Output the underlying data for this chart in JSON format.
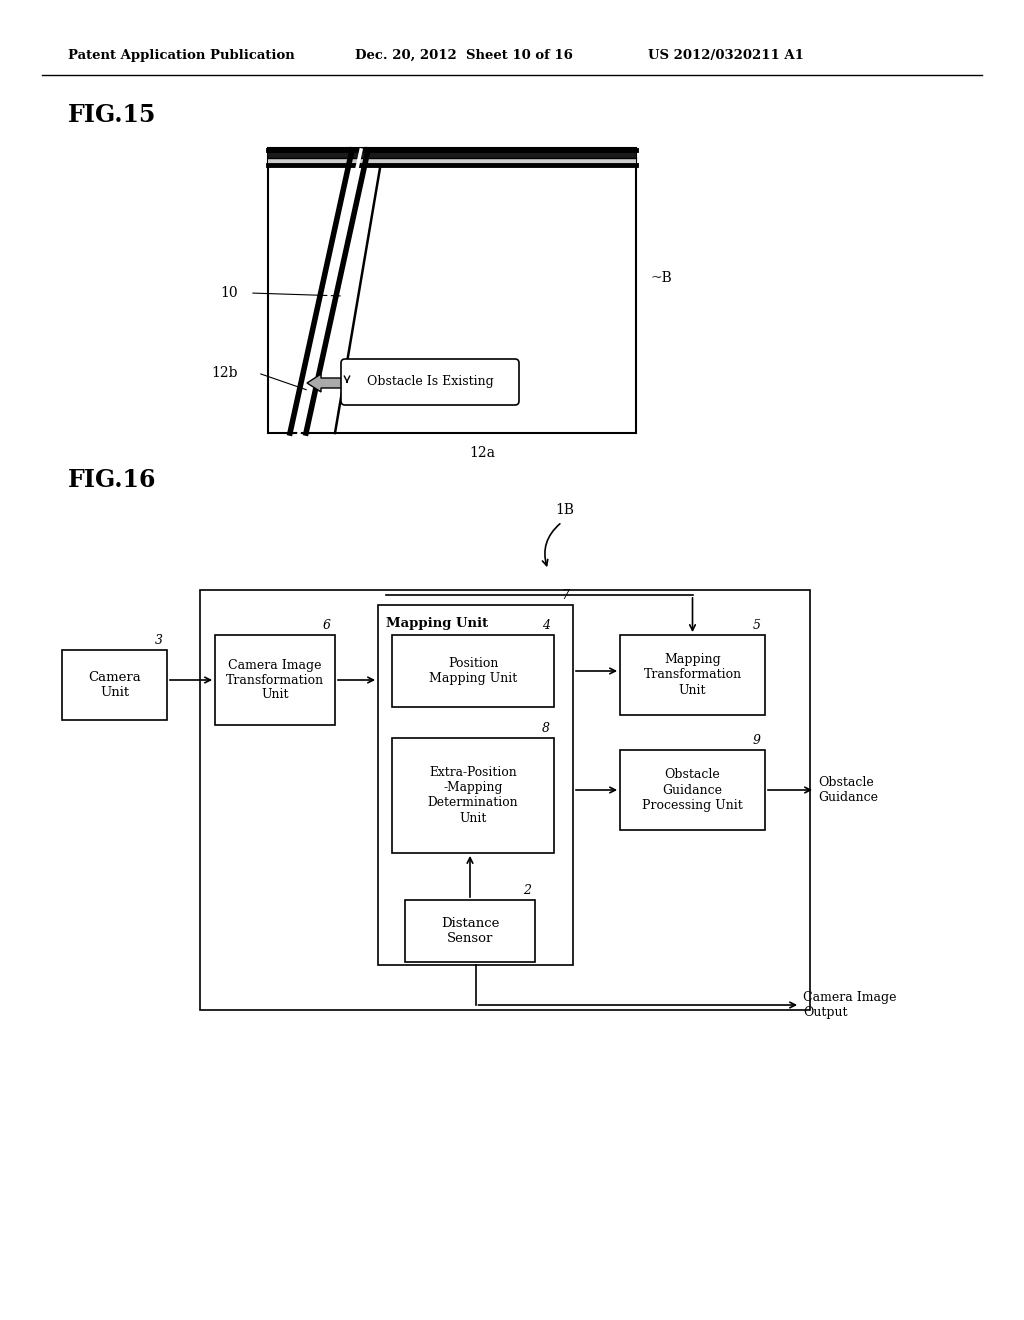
{
  "bg_color": "#ffffff",
  "header_text": "Patent Application Publication",
  "header_date": "Dec. 20, 2012  Sheet 10 of 16",
  "header_patent": "US 2012/0320211 A1",
  "fig15_label": "FIG.15",
  "fig16_label": "FIG.16",
  "fig15_note_B": "~B",
  "fig15_label_10": "10",
  "fig15_label_12b": "12b",
  "fig15_label_12a": "12a",
  "fig15_bubble_text": "Obstacle Is Existing",
  "fig16_label_1B": "1B",
  "cam_label": "Camera\nUnit",
  "cam_num": "3",
  "trans_label": "Camera Image\nTransformation\nUnit",
  "trans_num": "6",
  "map_label": "Mapping Unit",
  "map_num": "7",
  "pos_label": "Position\nMapping Unit",
  "pos_num": "4",
  "extra_label": "Extra-Position\n-Mapping\nDetermination\nUnit",
  "extra_num": "8",
  "maptrans_label": "Mapping\nTransformation\nUnit",
  "maptrans_num": "5",
  "obs_label": "Obstacle\nGuidance\nProcessing Unit",
  "obs_num": "9",
  "ds_label": "Distance\nSensor",
  "ds_num": "2",
  "obstacle_guidance_text": "Obstacle\nGuidance",
  "camera_image_output_text": "Camera Image\nOutput"
}
